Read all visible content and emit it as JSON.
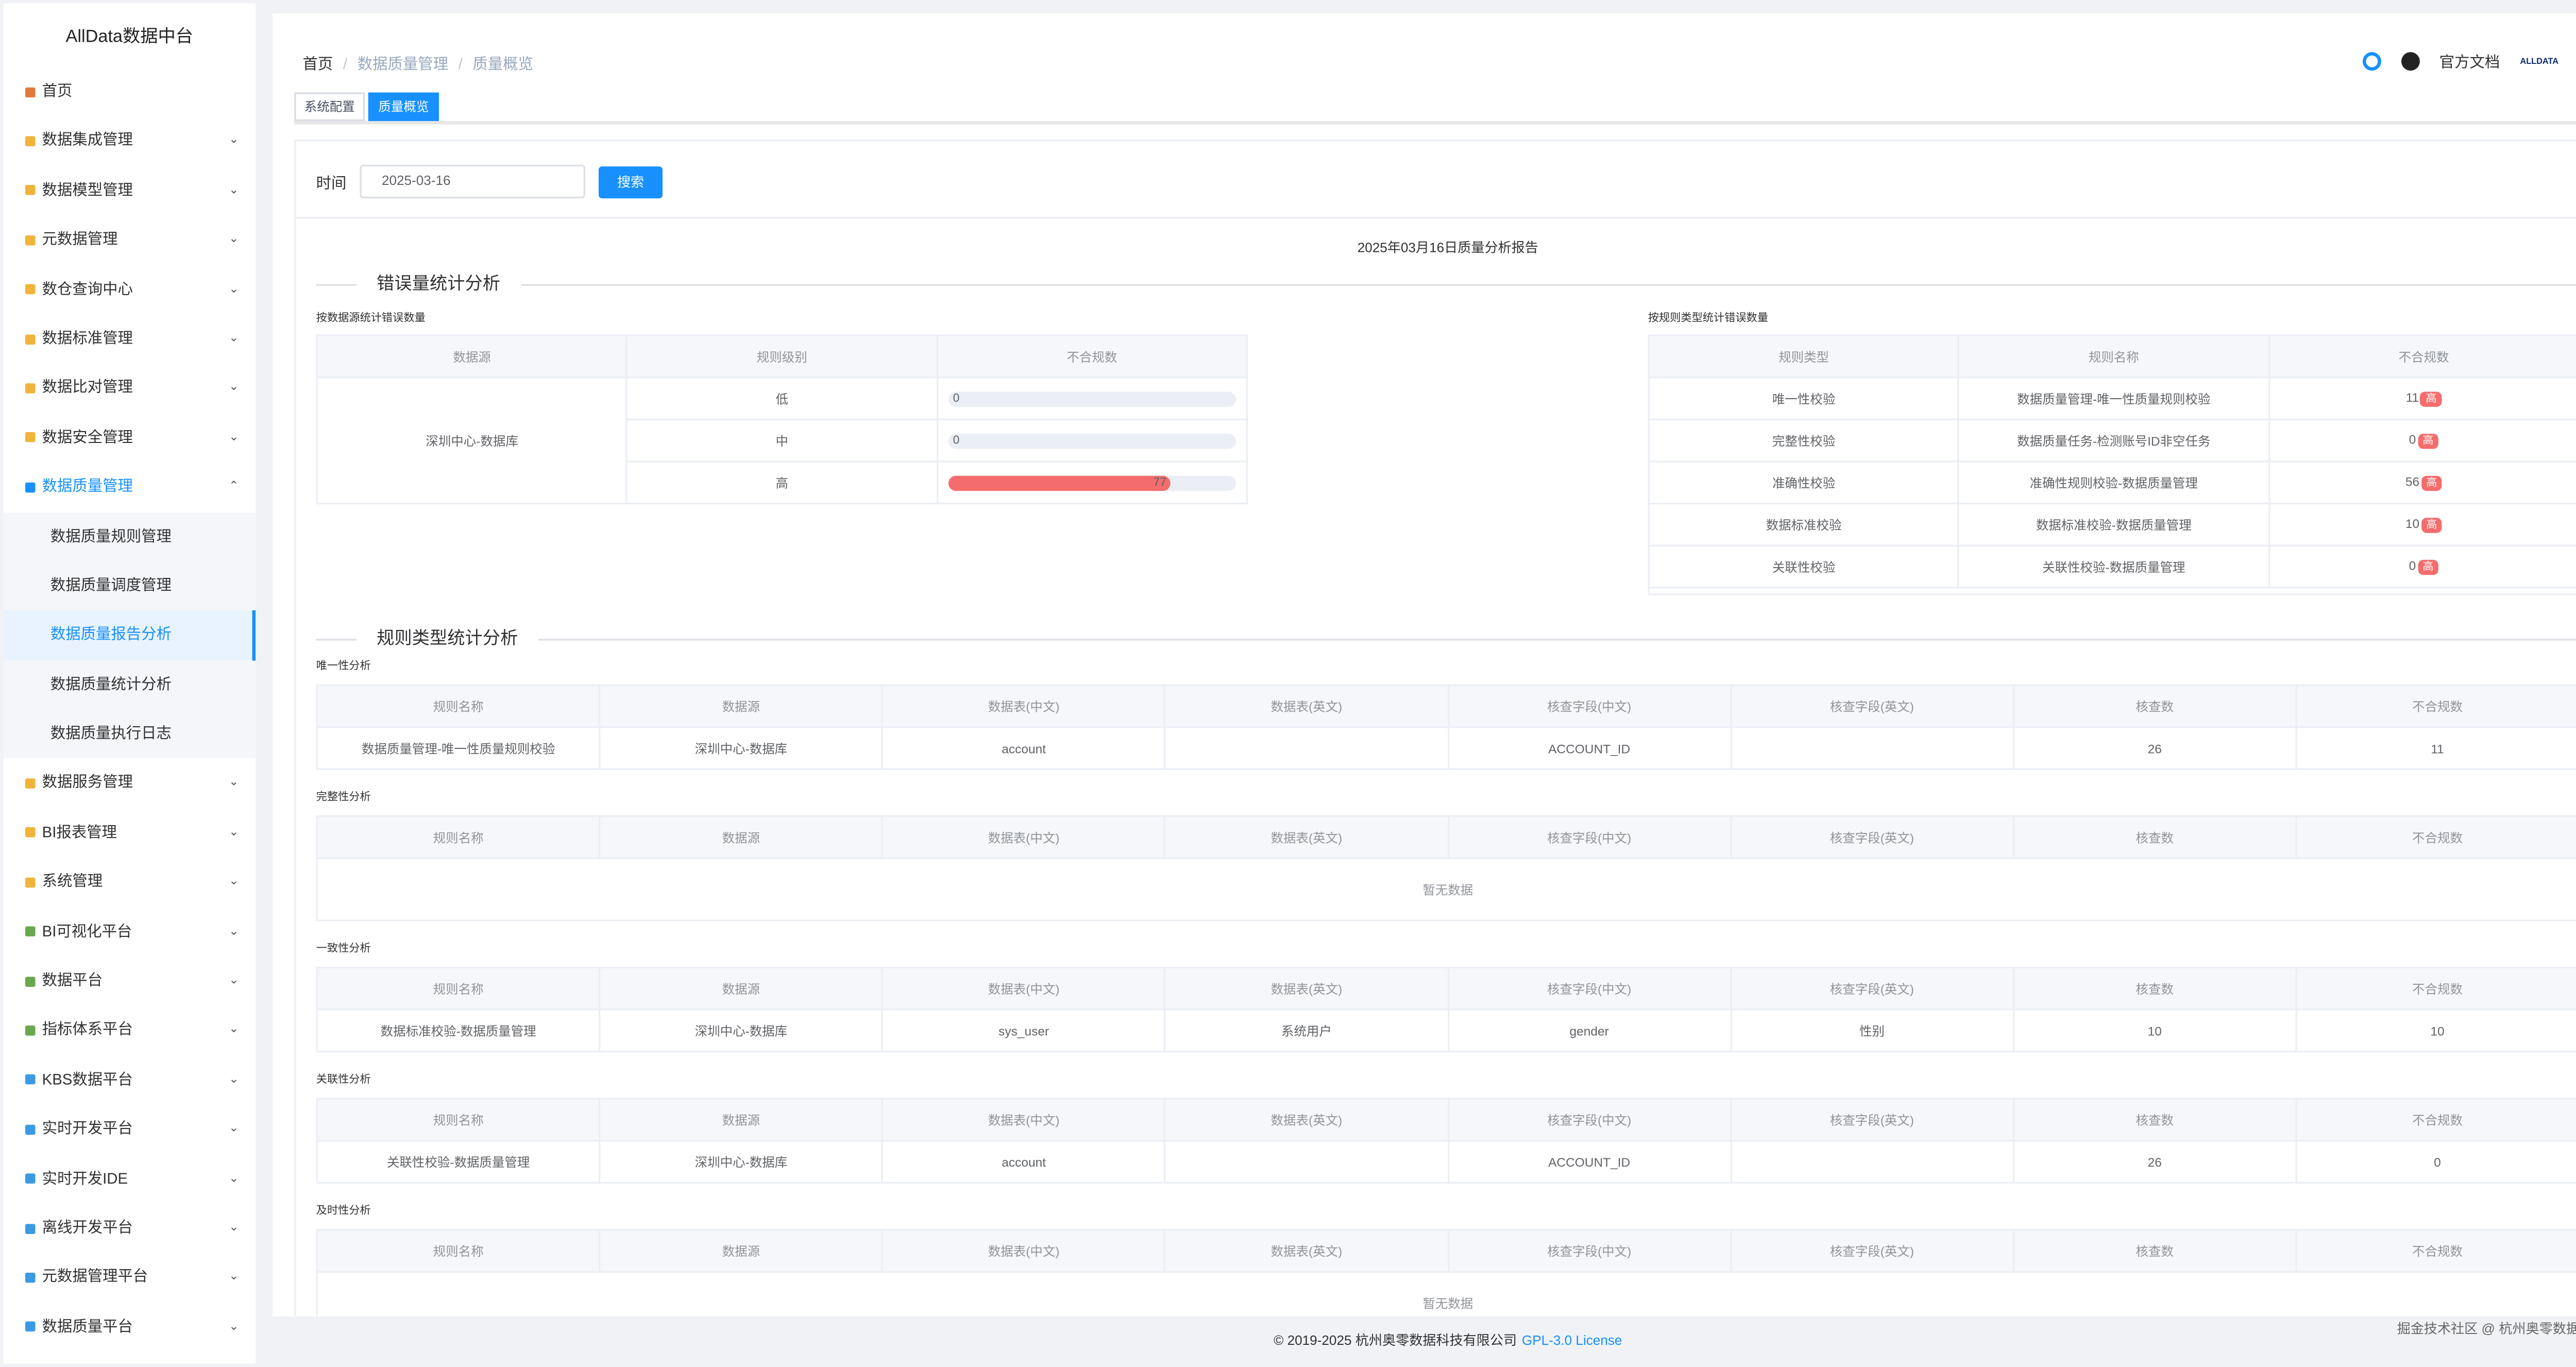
{
  "sidebar": {
    "title": "AllData数据中台",
    "menu_before": [
      "首页",
      "数据集成管理",
      "数据模型管理",
      "元数据管理",
      "数仓查询中心",
      "数据标准管理",
      "数据比对管理",
      "数据安全管理"
    ],
    "active_group": "数据质量管理",
    "submenu": [
      "数据质量规则管理",
      "数据质量调度管理",
      "数据质量报告分析",
      "数据质量统计分析",
      "数据质量执行日志"
    ],
    "menu_after": [
      "数据服务管理",
      "BI报表管理",
      "系统管理",
      "BI可视化平台",
      "数据平台",
      "指标体系平台",
      "KBS数据平台",
      "实时开发平台",
      "实时开发IDE",
      "离线开发平台",
      "元数据管理平台",
      "数据质量平台"
    ]
  },
  "header": {
    "breadcrumb": [
      "首页",
      "数据质量管理",
      "质量概览"
    ],
    "docs": "官方文档",
    "logo": "ALLDATA"
  },
  "tabs": [
    "系统配置",
    "质量概览"
  ],
  "form": {
    "label": "时间",
    "date": "2025-03-16",
    "button": "搜索"
  },
  "report_title": "2025年03月16日质量分析报告",
  "error_section": {
    "title": "错误量统计分析",
    "by_source": {
      "title": "按数据源统计错误数量",
      "headers": [
        "数据源",
        "规则级别",
        "不合规数"
      ],
      "source": "深圳中心-数据库",
      "rows": [
        {
          "level": "低",
          "value": 0
        },
        {
          "level": "中",
          "value": 0
        },
        {
          "level": "高",
          "value": 77
        }
      ]
    },
    "by_rule": {
      "title": "按规则类型统计错误数量",
      "headers": [
        "规则类型",
        "规则名称",
        "不合规数"
      ],
      "rows": [
        [
          "唯一性校验",
          "数据质量管理-唯一性质量规则校验",
          11,
          "高"
        ],
        [
          "完整性校验",
          "数据质量任务-检测账号ID非空任务",
          0,
          "高"
        ],
        [
          "准确性校验",
          "准确性规则校验-数据质量管理",
          56,
          "高"
        ],
        [
          "数据标准校验",
          "数据标准校验-数据质量管理",
          10,
          "高"
        ],
        [
          "关联性校验",
          "关联性校验-数据质量管理",
          0,
          "高"
        ]
      ]
    }
  },
  "rule_section": {
    "title": "规则类型统计分析",
    "headers": [
      "规则名称",
      "数据源",
      "数据表(中文)",
      "数据表(英文)",
      "核查字段(中文)",
      "核查字段(英文)",
      "核查数",
      "不合规数"
    ],
    "empty": "暂无数据",
    "tables": [
      {
        "title": "唯一性分析",
        "rows": [
          [
            "数据质量管理-唯一性质量规则校验",
            "深圳中心-数据库",
            "account",
            null,
            "ACCOUNT_ID",
            null,
            26,
            11
          ]
        ]
      },
      {
        "title": "完整性分析",
        "rows": []
      },
      {
        "title": "一致性分析",
        "rows": [
          [
            "数据标准校验-数据质量管理",
            "深圳中心-数据库",
            "sys_user",
            "系统用户",
            "gender",
            "性别",
            10,
            10
          ]
        ]
      },
      {
        "title": "关联性分析",
        "rows": [
          [
            "关联性校验-数据质量管理",
            "深圳中心-数据库",
            "account",
            null,
            "ACCOUNT_ID",
            null,
            26,
            0
          ]
        ]
      },
      {
        "title": "及时性分析",
        "rows": []
      }
    ]
  },
  "footer": {
    "copyright": "© 2019-2025 杭州奥零数据科技有限公司",
    "license": "GPL-3.0 License",
    "watermark": "掘金技术社区 @ 杭州奥零数据科技"
  }
}
